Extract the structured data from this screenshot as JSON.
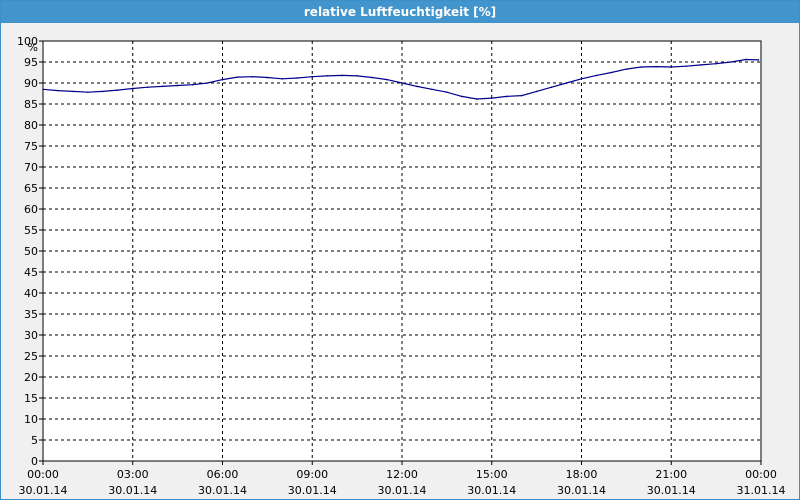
{
  "window": {
    "title": "relative Luftfeuchtigkeit [%]"
  },
  "chart_data": {
    "type": "line",
    "title": "relative Luftfeuchtigkeit [%]",
    "ylabel": "%",
    "xlabel": "",
    "ylim": [
      0,
      100
    ],
    "yticks": [
      0,
      5,
      10,
      15,
      20,
      25,
      30,
      35,
      40,
      45,
      50,
      55,
      60,
      65,
      70,
      75,
      80,
      85,
      90,
      95,
      100
    ],
    "xlim": [
      "2014-01-30 00:00",
      "2014-01-31 00:00"
    ],
    "xticks": [
      {
        "time": "00:00",
        "date": "30.01.14"
      },
      {
        "time": "03:00",
        "date": "30.01.14"
      },
      {
        "time": "06:00",
        "date": "30.01.14"
      },
      {
        "time": "09:00",
        "date": "30.01.14"
      },
      {
        "time": "12:00",
        "date": "30.01.14"
      },
      {
        "time": "15:00",
        "date": "30.01.14"
      },
      {
        "time": "18:00",
        "date": "30.01.14"
      },
      {
        "time": "21:00",
        "date": "30.01.14"
      },
      {
        "time": "00:00",
        "date": "31.01.14"
      }
    ],
    "grid": true,
    "series": [
      {
        "color": "#00008b",
        "x": [
          "2014-01-30 00:00",
          "2014-01-30 00:30",
          "2014-01-30 01:00",
          "2014-01-30 01:30",
          "2014-01-30 02:00",
          "2014-01-30 02:30",
          "2014-01-30 03:00",
          "2014-01-30 03:30",
          "2014-01-30 04:00",
          "2014-01-30 04:30",
          "2014-01-30 05:00",
          "2014-01-30 05:30",
          "2014-01-30 06:00",
          "2014-01-30 06:30",
          "2014-01-30 07:00",
          "2014-01-30 07:30",
          "2014-01-30 08:00",
          "2014-01-30 08:30",
          "2014-01-30 09:00",
          "2014-01-30 09:30",
          "2014-01-30 10:00",
          "2014-01-30 10:30",
          "2014-01-30 11:00",
          "2014-01-30 11:30",
          "2014-01-30 12:00",
          "2014-01-30 12:30",
          "2014-01-30 13:00",
          "2014-01-30 13:30",
          "2014-01-30 14:00",
          "2014-01-30 14:30",
          "2014-01-30 15:00",
          "2014-01-30 15:30",
          "2014-01-30 16:00",
          "2014-01-30 16:30",
          "2014-01-30 17:00",
          "2014-01-30 17:30",
          "2014-01-30 18:00",
          "2014-01-30 18:30",
          "2014-01-30 19:00",
          "2014-01-30 19:30",
          "2014-01-30 20:00",
          "2014-01-30 20:30",
          "2014-01-30 21:00",
          "2014-01-30 21:30",
          "2014-01-30 22:00",
          "2014-01-30 22:30",
          "2014-01-30 23:00",
          "2014-01-30 23:30",
          "2014-01-30 23:55"
        ],
        "values": [
          88.5,
          88.2,
          88.0,
          87.8,
          88.0,
          88.3,
          88.7,
          89.0,
          89.2,
          89.4,
          89.6,
          90.0,
          90.8,
          91.4,
          91.5,
          91.3,
          91.0,
          91.2,
          91.5,
          91.7,
          91.8,
          91.7,
          91.3,
          90.8,
          90.0,
          89.2,
          88.5,
          87.8,
          86.8,
          86.2,
          86.4,
          86.8,
          87.0,
          88.0,
          89.0,
          90.0,
          91.0,
          91.8,
          92.5,
          93.3,
          93.8,
          93.9,
          93.8,
          94.0,
          94.3,
          94.6,
          95.0,
          95.6,
          95.5
        ]
      }
    ]
  }
}
